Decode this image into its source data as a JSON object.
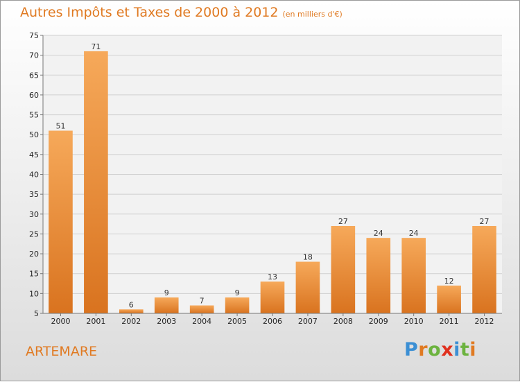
{
  "title": "Autres Impôts et Taxes de 2000 à 2012",
  "unit": "(en milliers d'€)",
  "town": "ARTEMARE",
  "logo": {
    "letters": [
      "P",
      "r",
      "o",
      "x",
      "i",
      "t",
      "i"
    ],
    "colors": [
      "#3b8fd4",
      "#e07a22",
      "#6cb33f",
      "#e0301e",
      "#3b8fd4",
      "#6cb33f",
      "#e07a22"
    ]
  },
  "colors": {
    "bar_top": "#f6a95a",
    "bar_bottom": "#d9731f",
    "accent": "#e07a22"
  },
  "chart_data": {
    "type": "bar",
    "categories": [
      "2000",
      "2001",
      "2002",
      "2003",
      "2004",
      "2005",
      "2006",
      "2007",
      "2008",
      "2009",
      "2010",
      "2011",
      "2012"
    ],
    "values": [
      51,
      71,
      6,
      9,
      7,
      9,
      13,
      18,
      27,
      24,
      24,
      12,
      27
    ],
    "ylim": [
      5,
      75
    ],
    "yticks": [
      5,
      10,
      15,
      20,
      25,
      30,
      35,
      40,
      45,
      50,
      55,
      60,
      65,
      70,
      75
    ],
    "grid": true,
    "legend": "none"
  }
}
